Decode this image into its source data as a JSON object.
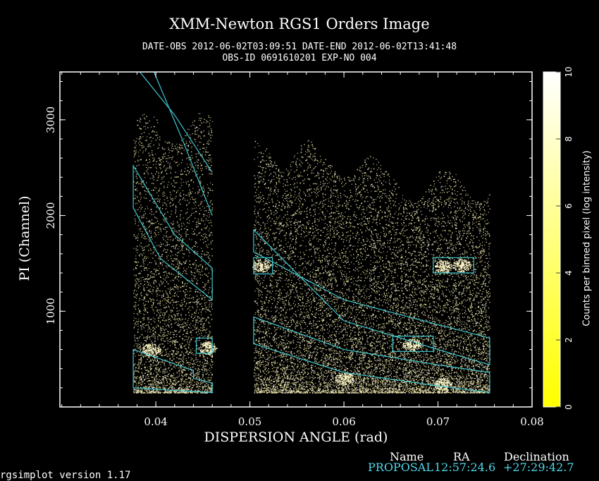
{
  "chart_data": {
    "type": "heatmap",
    "title": "XMM-Newton  RGS1 Orders Image",
    "subtitle_line1": "DATE-OBS 2012-06-02T03:09:51   DATE-END 2012-06-02T13:41:48",
    "subtitle_line2": "OBS-ID 0691610201 EXP-NO 004",
    "xlabel": "DISPERSION ANGLE (rad)",
    "ylabel": "PI (Channel)",
    "xlim": [
      0.0298,
      0.08
    ],
    "ylim": [
      0,
      3500
    ],
    "x_ticks": [
      0.04,
      0.05,
      0.06,
      0.07,
      0.08
    ],
    "x_tick_labels": [
      "0.04",
      "0.05",
      "0.06",
      "0.07",
      "0.08"
    ],
    "y_ticks": [
      1000,
      2000,
      3000
    ],
    "y_tick_labels": [
      "1000",
      "2000",
      "3000"
    ],
    "colorbar": {
      "label": "Counts per binned pixel (log intensity)",
      "range": [
        0,
        10
      ],
      "ticks": [
        0,
        2,
        4,
        6,
        8,
        10
      ],
      "tick_labels": [
        "0",
        "2",
        "4",
        "6",
        "8",
        "10"
      ],
      "colors": [
        "#ffff00",
        "#ffffff"
      ]
    },
    "ccd_strips": [
      {
        "x": [
          0.0376,
          0.046
        ],
        "top_pi": [
          2750,
          3100
        ]
      },
      {
        "x": [
          0.0504,
          0.0578
        ],
        "top_pi": [
          2500,
          2800
        ]
      },
      {
        "x": [
          0.0578,
          0.0655
        ],
        "top_pi": [
          2400,
          2620
        ]
      },
      {
        "x": [
          0.0655,
          0.0755
        ],
        "top_pi": [
          2150,
          2500
        ]
      }
    ],
    "hot_spots": [
      {
        "x": 0.0455,
        "pi": 620
      },
      {
        "x": 0.0512,
        "pi": 1480
      },
      {
        "x": 0.0672,
        "pi": 650
      },
      {
        "x": 0.0706,
        "pi": 1470
      },
      {
        "x": 0.0725,
        "pi": 1480
      },
      {
        "x": 0.0395,
        "pi": 600
      },
      {
        "x": 0.06,
        "pi": 300
      },
      {
        "x": 0.0705,
        "pi": 240
      }
    ],
    "order_regions": {
      "color": "#3fc8d0",
      "polygons": [
        [
          [
            0.0376,
            2520
          ],
          [
            0.0376,
            2080
          ],
          [
            0.0405,
            1550
          ],
          [
            0.046,
            1120
          ],
          [
            0.046,
            1450
          ],
          [
            0.042,
            1800
          ]
        ],
        [
          [
            0.0376,
            600
          ],
          [
            0.0376,
            200
          ],
          [
            0.046,
            150
          ],
          [
            0.046,
            250
          ],
          [
            0.044,
            300
          ],
          [
            0.044,
            380
          ]
        ],
        [
          [
            0.0504,
            1850
          ],
          [
            0.0504,
            1620
          ],
          [
            0.06,
            1120
          ],
          [
            0.07,
            860
          ],
          [
            0.0755,
            720
          ],
          [
            0.0755,
            440
          ],
          [
            0.07,
            600
          ],
          [
            0.06,
            900
          ]
        ],
        [
          [
            0.0504,
            940
          ],
          [
            0.0504,
            660
          ],
          [
            0.06,
            360
          ],
          [
            0.07,
            220
          ],
          [
            0.0755,
            150
          ],
          [
            0.0755,
            360
          ],
          [
            0.07,
            440
          ],
          [
            0.06,
            600
          ]
        ],
        [
          [
            0.0443,
            720
          ],
          [
            0.0443,
            560
          ],
          [
            0.046,
            560
          ],
          [
            0.046,
            720
          ]
        ],
        [
          [
            0.0504,
            1560
          ],
          [
            0.0504,
            1390
          ],
          [
            0.0524,
            1390
          ],
          [
            0.0524,
            1560
          ]
        ],
        [
          [
            0.0652,
            740
          ],
          [
            0.0652,
            580
          ],
          [
            0.0695,
            580
          ],
          [
            0.0695,
            740
          ]
        ],
        [
          [
            0.0695,
            1560
          ],
          [
            0.0695,
            1400
          ],
          [
            0.0738,
            1400
          ],
          [
            0.0738,
            1560
          ]
        ]
      ],
      "upper_curves": [
        [
          [
            0.0383,
            3500
          ],
          [
            0.042,
            3050
          ],
          [
            0.046,
            2450
          ]
        ],
        [
          [
            0.0398,
            3500
          ],
          [
            0.043,
            2750
          ],
          [
            0.046,
            2000
          ]
        ]
      ]
    }
  },
  "legend": {
    "header_name": "Name",
    "header_ra": "RA",
    "header_dec": "Declination",
    "target": "PROPOSAL",
    "ra": "12:57:24.6",
    "dec": "+27:29:42.7"
  },
  "footer": {
    "version": "rgsimplot version 1.17"
  }
}
